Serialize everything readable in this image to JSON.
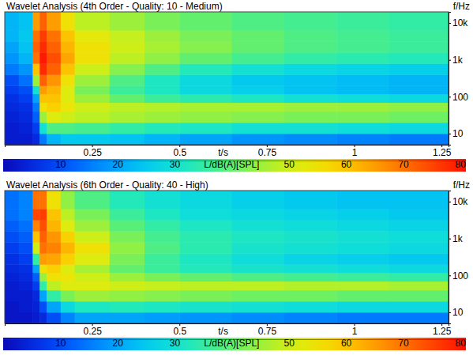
{
  "chart_data": [
    {
      "type": "heatmap",
      "title": "Wavelet Analysis (4th Order - Quality: 10 - Medium)",
      "xlabel": "t/s",
      "ylabel": "f/Hz",
      "log": "y",
      "xlim": [
        0,
        1.27
      ],
      "ylim": [
        5,
        20000
      ],
      "xticks": [
        0.25,
        0.5,
        0.75,
        1,
        1.25
      ],
      "yticks": [
        10,
        100,
        {
          "value": 1000,
          "label": "1k"
        },
        {
          "value": 10000,
          "label": "10k"
        }
      ],
      "x_bins": [
        0,
        0.04,
        0.08,
        0.1,
        0.12,
        0.16,
        0.2,
        0.3,
        0.4,
        0.5,
        0.65,
        0.8,
        0.95,
        1.1,
        1.27
      ],
      "y_bins": [
        5,
        10,
        20,
        40,
        70,
        120,
        200,
        400,
        800,
        1600,
        3200,
        6400,
        20000
      ],
      "z": [
        [
          3,
          3,
          5,
          15,
          22,
          25,
          25,
          24,
          22,
          20,
          18,
          17,
          16,
          15
        ],
        [
          3,
          4,
          8,
          30,
          38,
          38,
          37,
          35,
          33,
          32,
          30,
          30,
          29,
          28
        ],
        [
          4,
          5,
          12,
          45,
          52,
          50,
          48,
          46,
          45,
          44,
          43,
          42,
          42,
          41
        ],
        [
          5,
          6,
          15,
          55,
          58,
          54,
          50,
          48,
          47,
          46,
          46,
          45,
          45,
          44
        ],
        [
          6,
          8,
          20,
          60,
          60,
          52,
          45,
          40,
          36,
          34,
          32,
          30,
          29,
          28
        ],
        [
          8,
          10,
          30,
          65,
          62,
          52,
          42,
          36,
          32,
          28,
          26,
          24,
          23,
          22
        ],
        [
          10,
          14,
          45,
          72,
          66,
          55,
          45,
          38,
          32,
          28,
          25,
          24,
          23,
          22
        ],
        [
          15,
          18,
          60,
          78,
          72,
          60,
          50,
          43,
          38,
          33,
          30,
          28,
          27,
          26
        ],
        [
          18,
          22,
          70,
          80,
          74,
          64,
          55,
          48,
          44,
          40,
          37,
          35,
          34,
          33
        ],
        [
          20,
          24,
          72,
          78,
          72,
          62,
          55,
          50,
          46,
          43,
          40,
          38,
          37,
          36
        ],
        [
          22,
          25,
          70,
          76,
          70,
          60,
          53,
          49,
          45,
          42,
          40,
          38,
          37,
          36
        ],
        [
          22,
          24,
          65,
          72,
          65,
          55,
          48,
          45,
          42,
          40,
          38,
          37,
          36,
          35
        ]
      ],
      "colorbar": {
        "range": [
          0,
          81
        ],
        "ticks": [
          10,
          20,
          30,
          50,
          60,
          70,
          80
        ],
        "label": "L/dB(A)[SPL]"
      }
    },
    {
      "type": "heatmap",
      "title": "Wavelet Analysis (6th Order - Quality: 40 - High)",
      "xlabel": "t/s",
      "ylabel": "f/Hz",
      "log": "y",
      "xlim": [
        0,
        1.27
      ],
      "ylim": [
        5,
        20000
      ],
      "xticks": [
        0.25,
        0.5,
        0.75,
        1,
        1.25
      ],
      "yticks": [
        10,
        100,
        {
          "value": 1000,
          "label": "1k"
        },
        {
          "value": 10000,
          "label": "10k"
        }
      ],
      "x_bins": [
        0,
        0.04,
        0.08,
        0.1,
        0.12,
        0.16,
        0.2,
        0.3,
        0.4,
        0.5,
        0.65,
        0.8,
        0.95,
        1.1,
        1.27
      ],
      "y_bins": [
        5,
        10,
        20,
        40,
        70,
        120,
        200,
        400,
        800,
        1600,
        3200,
        6400,
        20000
      ],
      "z": [
        [
          2,
          2,
          3,
          5,
          10,
          16,
          20,
          20,
          19,
          18,
          17,
          16,
          15,
          15
        ],
        [
          2,
          3,
          4,
          10,
          20,
          28,
          32,
          33,
          32,
          31,
          30,
          29,
          28,
          28
        ],
        [
          3,
          3,
          5,
          20,
          35,
          42,
          45,
          44,
          43,
          42,
          41,
          41,
          40,
          40
        ],
        [
          3,
          4,
          8,
          35,
          48,
          52,
          52,
          50,
          49,
          48,
          48,
          47,
          47,
          46
        ],
        [
          4,
          5,
          12,
          45,
          55,
          54,
          50,
          45,
          42,
          40,
          38,
          37,
          36,
          35
        ],
        [
          5,
          6,
          20,
          55,
          58,
          52,
          46,
          40,
          36,
          33,
          31,
          30,
          29,
          28
        ],
        [
          6,
          8,
          35,
          65,
          64,
          58,
          52,
          42,
          36,
          32,
          29,
          27,
          26,
          25
        ],
        [
          8,
          10,
          50,
          70,
          68,
          62,
          55,
          44,
          38,
          34,
          31,
          30,
          29,
          28
        ],
        [
          10,
          12,
          60,
          72,
          66,
          58,
          50,
          42,
          37,
          34,
          32,
          31,
          30,
          29
        ],
        [
          12,
          14,
          68,
          74,
          62,
          52,
          45,
          39,
          35,
          32,
          30,
          29,
          28,
          27
        ],
        [
          14,
          16,
          75,
          76,
          60,
          48,
          42,
          36,
          32,
          29,
          28,
          27,
          26,
          25
        ],
        [
          14,
          16,
          70,
          70,
          55,
          44,
          38,
          33,
          30,
          28,
          26,
          25,
          24,
          24
        ]
      ],
      "colorbar": {
        "range": [
          0,
          81
        ],
        "ticks": [
          10,
          20,
          30,
          50,
          60,
          70,
          80
        ],
        "label": "L/dB(A)[SPL]"
      }
    }
  ]
}
